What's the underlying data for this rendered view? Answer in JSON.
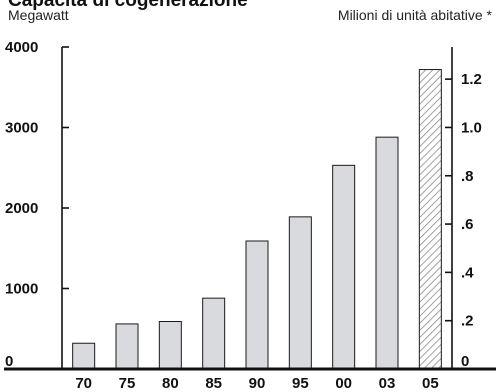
{
  "chart_data": {
    "type": "bar",
    "title": "Capacità di cogenerazione",
    "ylabel": "Megawatt",
    "ylabel_right": "Milioni di unità abitative *",
    "categories": [
      "70",
      "75",
      "80",
      "85",
      "90",
      "95",
      "00",
      "03",
      "05"
    ],
    "values": [
      320,
      560,
      590,
      880,
      1590,
      1890,
      2530,
      2880,
      3720
    ],
    "highlight": {
      "category": "05",
      "pattern": "hatched"
    },
    "ylim": [
      0,
      4000
    ],
    "yticks": [
      "0",
      "1000",
      "2000",
      "3000",
      "4000"
    ],
    "y2lim": [
      0,
      1.333
    ],
    "y2ticks": [
      "0",
      ".2",
      ".4",
      ".6",
      ".8",
      "1.0",
      "1.2"
    ],
    "grid": false,
    "colors": {
      "bar": "#d9dadd",
      "bar_stroke": "#1a1a1a",
      "axis": "#111111"
    }
  }
}
